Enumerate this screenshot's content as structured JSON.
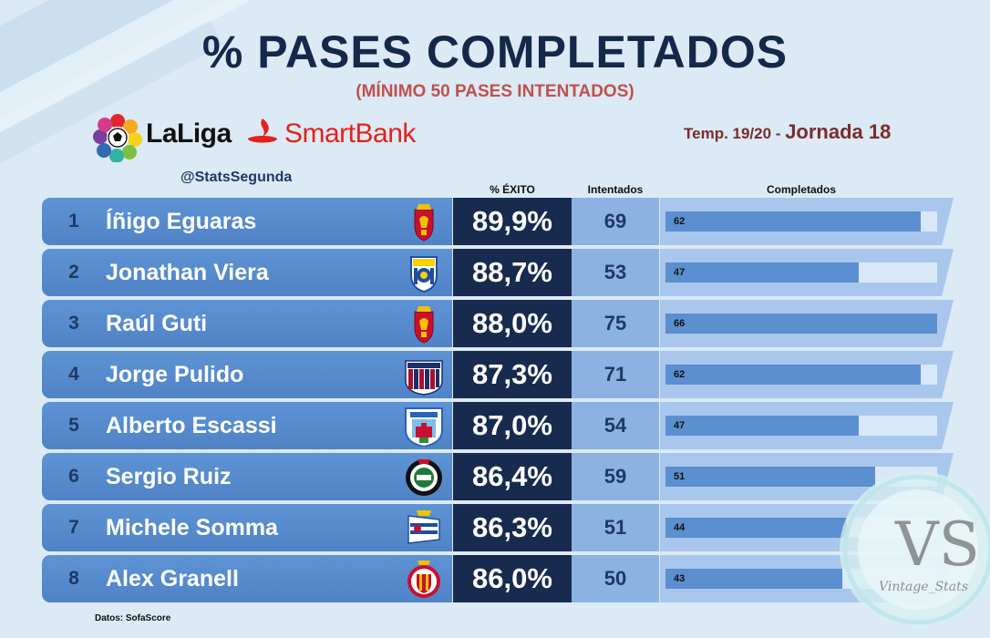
{
  "title": "% PASES COMPLETADOS",
  "subtitle": "(MÍNIMO 50 PASES INTENTADOS)",
  "league": {
    "part1": "LaLiga",
    "part2": "SmartBank"
  },
  "handle": "@StatsSegunda",
  "season": {
    "label": "Temp. 19/20 -",
    "round": "Jornada 18"
  },
  "source": "Datos: SofaScore",
  "watermark": {
    "initials": "VS",
    "name": "Vintage_Stats"
  },
  "colors": {
    "title": "#14284a",
    "accent": "#c0504d",
    "row": "#5e93d4",
    "pct_bg": "#172b4f",
    "bar": "#5b8fcf"
  },
  "chart_data": {
    "type": "table",
    "title": "% PASES COMPLETADOS",
    "columns": [
      "% ÉXITO",
      "Intentados",
      "Completados"
    ],
    "bar_max": 66,
    "rows": [
      {
        "rank": "1",
        "name": "Íñigo Eguaras",
        "crest": "real-zaragoza-crest",
        "pct": "89,9%",
        "attempted": "69",
        "completed": 62
      },
      {
        "rank": "2",
        "name": "Jonathan Viera",
        "crest": "las-palmas-crest",
        "pct": "88,7%",
        "attempted": "53",
        "completed": 47
      },
      {
        "rank": "3",
        "name": "Raúl Guti",
        "crest": "real-zaragoza-crest",
        "pct": "88,0%",
        "attempted": "75",
        "completed": 66
      },
      {
        "rank": "4",
        "name": "Jorge Pulido",
        "crest": "huesca-crest",
        "pct": "87,3%",
        "attempted": "71",
        "completed": 62
      },
      {
        "rank": "5",
        "name": "Alberto Escassi",
        "crest": "numancia-crest",
        "pct": "87,0%",
        "attempted": "54",
        "completed": 47
      },
      {
        "rank": "6",
        "name": "Sergio Ruiz",
        "crest": "racing-crest",
        "pct": "86,4%",
        "attempted": "59",
        "completed": 51
      },
      {
        "rank": "7",
        "name": "Michele Somma",
        "crest": "deportivo-crest",
        "pct": "86,3%",
        "attempted": "51",
        "completed": 44
      },
      {
        "rank": "8",
        "name": "Alex Granell",
        "crest": "girona-crest",
        "pct": "86,0%",
        "attempted": "50",
        "completed": 43
      }
    ]
  }
}
